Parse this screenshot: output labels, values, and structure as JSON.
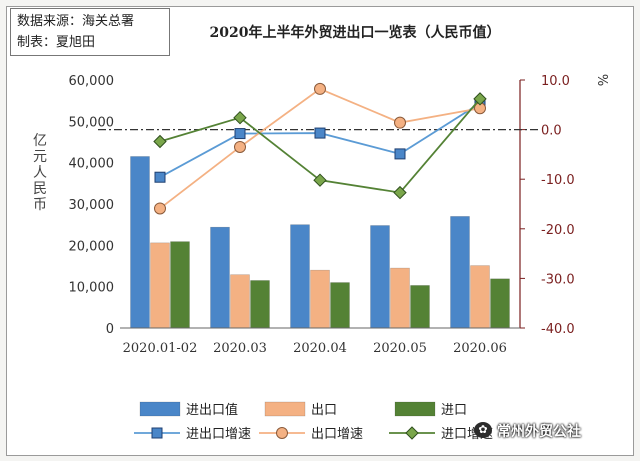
{
  "source_box": {
    "line1": "数据来源：海关总署",
    "line2": "制表：夏旭田"
  },
  "watermark": {
    "text": "常州外贸公社",
    "icon": "wechat-icon"
  },
  "chart_data": {
    "type": "bar",
    "title": "2020年上半年外贸进出口一览表（人民币值）",
    "categories": [
      "2020.01-02",
      "2020.03",
      "2020.04",
      "2020.05",
      "2020.06"
    ],
    "ylabel_left": "亿元人民币",
    "ylabel_right": "%",
    "ylim_left": [
      0,
      60000
    ],
    "ylim_right": [
      -40,
      10
    ],
    "yticks_left": [
      "0",
      "10,000",
      "20,000",
      "30,000",
      "40,000",
      "50,000",
      "60,000"
    ],
    "yticks_right": [
      "-40.0",
      "-30.0",
      "-20.0",
      "-10.0",
      "0.0",
      "10.0"
    ],
    "reference_line_right": 0,
    "bar_series": [
      {
        "name": "进出口值",
        "color": "#4a86c8",
        "values": [
          41500,
          24400,
          25000,
          24800,
          27000
        ]
      },
      {
        "name": "出口",
        "color": "#f4b183",
        "values": [
          20600,
          12900,
          14000,
          14500,
          15100
        ]
      },
      {
        "name": "进口",
        "color": "#548235",
        "values": [
          20900,
          11500,
          11000,
          10300,
          11900
        ]
      }
    ],
    "line_series": [
      {
        "name": "进出口增速",
        "color": "#5b9bd5",
        "marker": "square",
        "values": [
          -9.6,
          -0.8,
          -0.7,
          -4.9,
          5.3
        ]
      },
      {
        "name": "出口增速",
        "color": "#f4b183",
        "marker": "circle",
        "values": [
          -15.9,
          -3.5,
          8.2,
          1.4,
          4.3
        ]
      },
      {
        "name": "进口增速",
        "color": "#548235",
        "marker": "diamond",
        "values": [
          -2.4,
          2.4,
          -10.2,
          -12.7,
          6.2
        ]
      }
    ],
    "legend_position": "bottom",
    "grid": false
  }
}
